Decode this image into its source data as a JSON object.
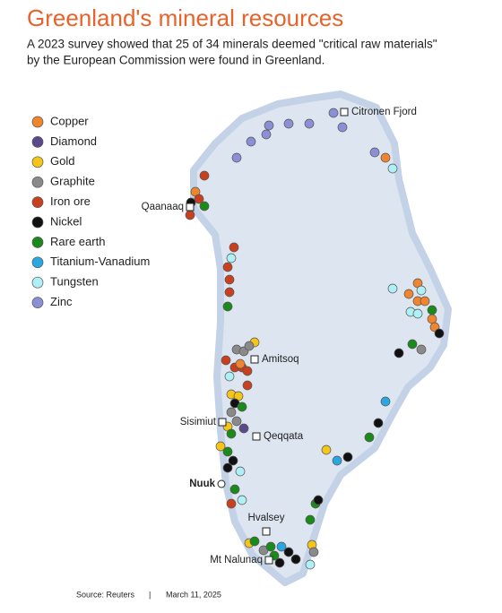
{
  "header": {
    "title": "Greenland's mineral resources",
    "subtitle_lines": [
      "A 2023 survey showed that 25 of 34 minerals deemed \"critical raw materials\"",
      "by the European Commission were found in Greenland."
    ]
  },
  "legend": [
    {
      "name": "Copper",
      "color": "#f0852d"
    },
    {
      "name": "Diamond",
      "color": "#5b4a8b"
    },
    {
      "name": "Gold",
      "color": "#f5c518"
    },
    {
      "name": "Graphite",
      "color": "#8a8a8a"
    },
    {
      "name": "Iron ore",
      "color": "#c8401e"
    },
    {
      "name": "Nickel",
      "color": "#111111"
    },
    {
      "name": "Rare earth",
      "color": "#1a8a1a"
    },
    {
      "name": "Titanium-Vanadium",
      "color": "#2aa7e0"
    },
    {
      "name": "Tungsten",
      "color": "#aef0f5"
    },
    {
      "name": "Zinc",
      "color": "#8b8fd6"
    }
  ],
  "places": [
    "Citronen Fjord",
    "Qaanaaq",
    "Amitsoq",
    "Sisimiut",
    "Qeqqata",
    "Nuuk",
    "Hvalsey",
    "Mt Nalunaq"
  ],
  "footer": {
    "source": "Source: Reuters",
    "separator": "|",
    "date": "March 11, 2025"
  }
}
